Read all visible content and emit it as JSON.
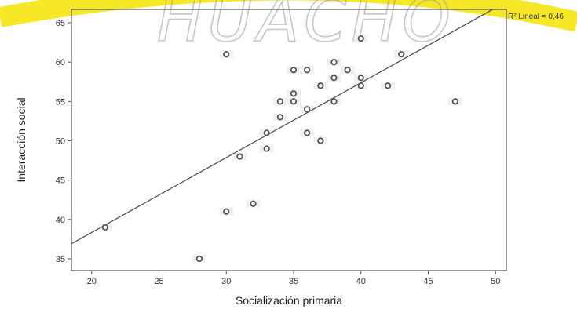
{
  "watermark": {
    "text": "HUACHO",
    "arc_color": "#f5e400"
  },
  "chart_data": {
    "type": "scatter",
    "title": "",
    "xlabel": "Socialización primaria",
    "ylabel": "Interacción social",
    "xlim": [
      18.5,
      50.8
    ],
    "ylim": [
      33.5,
      66.7
    ],
    "xticks": [
      20,
      25,
      30,
      35,
      40,
      45,
      50
    ],
    "yticks": [
      35,
      40,
      45,
      50,
      55,
      60,
      65
    ],
    "grid": false,
    "legend": "none",
    "colors": {
      "points": "#555555",
      "fit_line": "#555555",
      "frame": "#555555"
    },
    "points": [
      {
        "x": 21,
        "y": 39
      },
      {
        "x": 28,
        "y": 35
      },
      {
        "x": 30,
        "y": 41
      },
      {
        "x": 30,
        "y": 61
      },
      {
        "x": 31,
        "y": 48
      },
      {
        "x": 32,
        "y": 42
      },
      {
        "x": 33,
        "y": 49
      },
      {
        "x": 33,
        "y": 51
      },
      {
        "x": 34,
        "y": 53
      },
      {
        "x": 34,
        "y": 55
      },
      {
        "x": 35,
        "y": 55
      },
      {
        "x": 35,
        "y": 56
      },
      {
        "x": 35,
        "y": 59
      },
      {
        "x": 36,
        "y": 51
      },
      {
        "x": 36,
        "y": 54
      },
      {
        "x": 36,
        "y": 59
      },
      {
        "x": 37,
        "y": 50
      },
      {
        "x": 37,
        "y": 57
      },
      {
        "x": 38,
        "y": 55
      },
      {
        "x": 38,
        "y": 58
      },
      {
        "x": 38,
        "y": 60
      },
      {
        "x": 39,
        "y": 59
      },
      {
        "x": 40,
        "y": 57
      },
      {
        "x": 40,
        "y": 58
      },
      {
        "x": 40,
        "y": 63
      },
      {
        "x": 42,
        "y": 57
      },
      {
        "x": 43,
        "y": 61
      },
      {
        "x": 47,
        "y": 55
      }
    ],
    "fit_line": {
      "label": "R² Lineal = 0,46",
      "slope": 0.952,
      "intercept": 19.3
    }
  }
}
